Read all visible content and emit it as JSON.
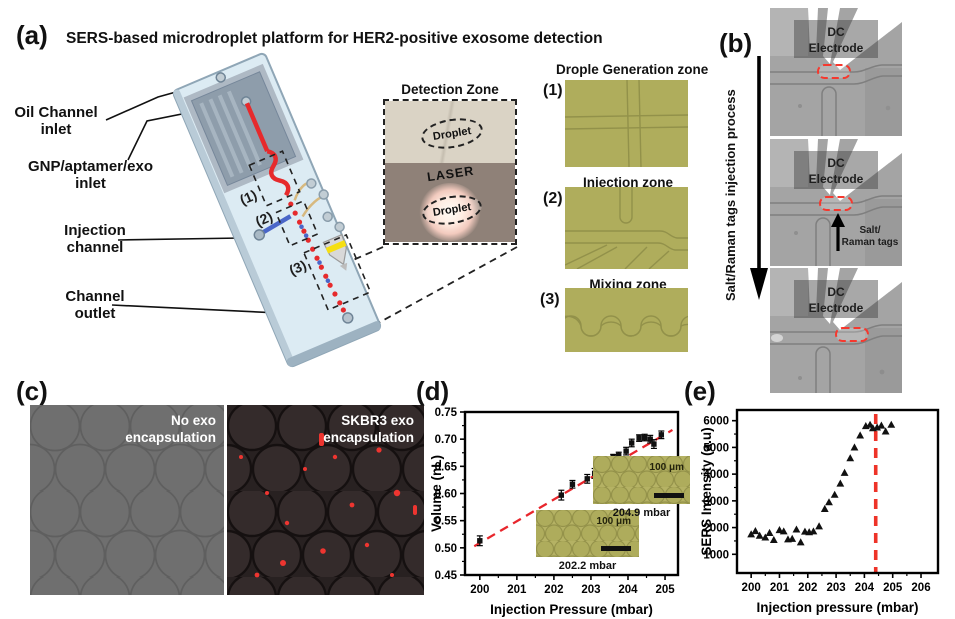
{
  "panel_a": {
    "label": "(a)",
    "title": "SERS-based microdroplet platform for HER2-positive exosome detection",
    "callout_oil_line1": "Oil Channel",
    "callout_oil_line2": "inlet",
    "callout_gnp_line1": "GNP/aptamer/exo",
    "callout_gnp_line2": "inlet",
    "callout_injection_line1": "Injection",
    "callout_injection_line2": "channel",
    "callout_outlet_line1": "Channel",
    "callout_outlet_line2": "outlet",
    "chip_markers": [
      "(1)",
      "(2)",
      "(3)"
    ],
    "detection_zone": {
      "title": "Detection Zone",
      "droplet_top": "Droplet",
      "laser": "LASER",
      "droplet_bottom": "Droplet"
    },
    "zones": [
      {
        "marker": "(1)",
        "title": "Drople Generation zone"
      },
      {
        "marker": "(2)",
        "title": "Injection zone"
      },
      {
        "marker": "(3)",
        "title": "Mixing zone"
      }
    ]
  },
  "panel_b": {
    "label": "(b)",
    "process_label": "Salt/Raman tags injection process",
    "dc_line1": "DC",
    "dc_line2": "Electrode",
    "tags_line1": "Salt/",
    "tags_line2": "Raman tags"
  },
  "panel_c": {
    "label": "(c)",
    "left_line1": "No exo",
    "left_line2": "encapsulation",
    "right_line1": "SKBR3 exo",
    "right_line2": "encapsulation"
  },
  "panel_d": {
    "label": "(d)",
    "insets": [
      {
        "caption": "202.2 mbar",
        "scale_label": "100 μm"
      },
      {
        "caption": "204.9 mbar",
        "scale_label": "100 μm"
      }
    ]
  },
  "panel_e": {
    "label": "(e)"
  },
  "colors": {
    "accent_red": "#e8262c",
    "chip_blue": "#dcebf3",
    "olive_micrograph": "#b2b05e",
    "laser_yellow": "#f6df12",
    "injection_blue": "#4a66c8"
  },
  "chart_data": [
    {
      "id": "chart-d",
      "type": "scatter",
      "title": "",
      "xlabel": "Injection Pressure (mbar)",
      "ylabel": "Volume (nL)",
      "xlim": [
        199.6,
        205.35
      ],
      "ylim": [
        0.45,
        0.75
      ],
      "xticks": [
        200,
        201,
        202,
        203,
        204,
        205
      ],
      "yticks": [
        0.45,
        0.5,
        0.55,
        0.6,
        0.65,
        0.7,
        0.75
      ],
      "ytick_decimals": 2,
      "marker": "square",
      "grid": false,
      "legend": "none",
      "points": [
        [
          200.0,
          0.513,
          0.009
        ],
        [
          202.2,
          0.597,
          0.009
        ],
        [
          202.5,
          0.617,
          0.007
        ],
        [
          202.9,
          0.627,
          0.008
        ],
        [
          203.1,
          0.637,
          0.009
        ],
        [
          203.3,
          0.653,
          0.007
        ],
        [
          203.45,
          0.661,
          0.006
        ],
        [
          203.6,
          0.666,
          0.006
        ],
        [
          203.75,
          0.67,
          0.006
        ],
        [
          203.95,
          0.678,
          0.007
        ],
        [
          204.1,
          0.693,
          0.007
        ],
        [
          204.3,
          0.702,
          0.006
        ],
        [
          204.45,
          0.703,
          0.006
        ],
        [
          204.6,
          0.7,
          0.007
        ],
        [
          204.7,
          0.691,
          0.008
        ],
        [
          204.9,
          0.708,
          0.007
        ]
      ],
      "trend_line": {
        "x1": 199.85,
        "y1": 0.503,
        "x2": 205.2,
        "y2": 0.717,
        "color": "#e8262c"
      }
    },
    {
      "id": "chart-e",
      "type": "scatter",
      "title": "",
      "xlabel": "Injection pressure (mbar)",
      "ylabel": "SERS Intensity (a.u)",
      "xlim": [
        199.5,
        206.6
      ],
      "ylim": [
        300,
        6400
      ],
      "xticks": [
        200,
        201,
        202,
        203,
        204,
        205,
        206
      ],
      "yticks": [
        1000,
        2000,
        3000,
        4000,
        5000,
        6000
      ],
      "ytick_decimals": 0,
      "marker": "triangle",
      "grid": false,
      "legend": "none",
      "points": [
        [
          200.0,
          1750
        ],
        [
          200.15,
          1870
        ],
        [
          200.3,
          1700
        ],
        [
          200.5,
          1630
        ],
        [
          200.65,
          1800
        ],
        [
          200.8,
          1540
        ],
        [
          201.0,
          1910
        ],
        [
          201.15,
          1860
        ],
        [
          201.3,
          1560
        ],
        [
          201.45,
          1580
        ],
        [
          201.6,
          1930
        ],
        [
          201.75,
          1450
        ],
        [
          201.9,
          1850
        ],
        [
          202.05,
          1830
        ],
        [
          202.2,
          1860
        ],
        [
          202.4,
          2050
        ],
        [
          202.6,
          2700
        ],
        [
          202.75,
          2950
        ],
        [
          202.95,
          3230
        ],
        [
          203.15,
          3650
        ],
        [
          203.3,
          4050
        ],
        [
          203.5,
          4600
        ],
        [
          203.65,
          5000
        ],
        [
          203.85,
          5450
        ],
        [
          204.05,
          5800
        ],
        [
          204.2,
          5850
        ],
        [
          204.3,
          5720
        ],
        [
          204.45,
          5750
        ],
        [
          204.6,
          5820
        ],
        [
          204.75,
          5600
        ],
        [
          204.95,
          5850
        ]
      ],
      "vline": {
        "x": 204.4,
        "color": "#ee3328"
      }
    }
  ]
}
